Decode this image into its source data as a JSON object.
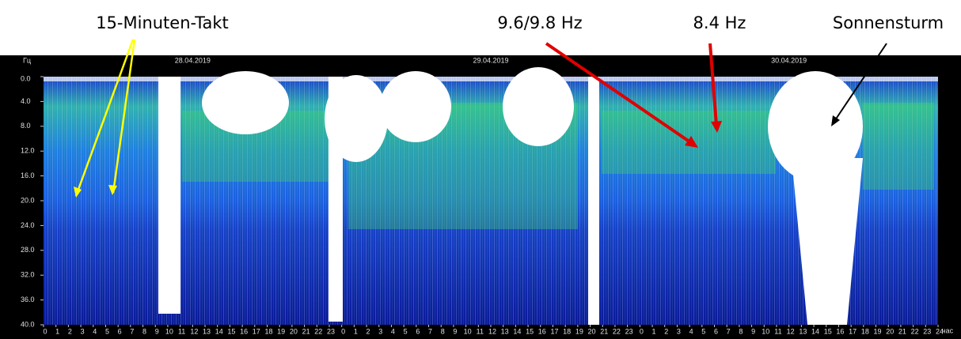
{
  "chart_data": {
    "type": "spectrogram",
    "y_label": "Гц",
    "x_label": "час",
    "y_inverted": true,
    "dates": [
      "28.04.2019",
      "29.04.2019",
      "30.04.2019"
    ],
    "annotations": [
      "15-Minuten-Takt",
      "9.6/9.8 Hz",
      "8.4 Hz",
      "Sonnensturm"
    ],
    "ylim": [
      0,
      40
    ],
    "yticks": [
      {
        "value": 0,
        "label": "0.0"
      },
      {
        "value": 4,
        "label": "4.0"
      },
      {
        "value": 8,
        "label": "8.0"
      },
      {
        "value": 12,
        "label": "12.0"
      },
      {
        "value": 16,
        "label": "16.0"
      },
      {
        "value": 20,
        "label": "20.0"
      },
      {
        "value": 24,
        "label": "24.0"
      },
      {
        "value": 28,
        "label": "28.0"
      },
      {
        "value": 32,
        "label": "32.0"
      },
      {
        "value": 36,
        "label": "36.0"
      },
      {
        "value": 40,
        "label": "40.0"
      }
    ],
    "xlim": [
      0,
      72
    ],
    "xticks": [
      0,
      1,
      2,
      3,
      4,
      5,
      6,
      7,
      8,
      9,
      10,
      11,
      12,
      13,
      14,
      15,
      16,
      17,
      18,
      19,
      20,
      21,
      22,
      23,
      {
        "value": 24,
        "label": "0"
      },
      {
        "value": 25,
        "label": "1"
      },
      {
        "value": 26,
        "label": "2"
      },
      {
        "value": 27,
        "label": "3"
      },
      {
        "value": 28,
        "label": "4"
      },
      {
        "value": 29,
        "label": "5"
      },
      {
        "value": 30,
        "label": "6"
      },
      {
        "value": 31,
        "label": "7"
      },
      {
        "value": 32,
        "label": "8"
      },
      {
        "value": 33,
        "label": "9"
      },
      {
        "value": 34,
        "label": "10"
      },
      {
        "value": 35,
        "label": "11"
      },
      {
        "value": 36,
        "label": "12"
      },
      {
        "value": 37,
        "label": "13"
      },
      {
        "value": 38,
        "label": "14"
      },
      {
        "value": 39,
        "label": "15"
      },
      {
        "value": 40,
        "label": "16"
      },
      {
        "value": 41,
        "label": "17"
      },
      {
        "value": 42,
        "label": "18"
      },
      {
        "value": 43,
        "label": "19"
      },
      {
        "value": 44,
        "label": "20"
      },
      {
        "value": 45,
        "label": "21"
      },
      {
        "value": 46,
        "label": "22"
      },
      {
        "value": 47,
        "label": "23"
      },
      {
        "value": 48,
        "label": "0"
      },
      {
        "value": 49,
        "label": "1"
      },
      {
        "value": 50,
        "label": "2"
      },
      {
        "value": 51,
        "label": "3"
      },
      {
        "value": 52,
        "label": "4"
      },
      {
        "value": 53,
        "label": "5"
      },
      {
        "value": 54,
        "label": "6"
      },
      {
        "value": 55,
        "label": "7"
      },
      {
        "value": 56,
        "label": "8"
      },
      {
        "value": 57,
        "label": "9"
      },
      {
        "value": 58,
        "label": "10"
      },
      {
        "value": 59,
        "label": "11"
      },
      {
        "value": 60,
        "label": "12"
      },
      {
        "value": 61,
        "label": "13"
      },
      {
        "value": 62,
        "label": "14"
      },
      {
        "value": 63,
        "label": "15"
      },
      {
        "value": 64,
        "label": "16"
      },
      {
        "value": 65,
        "label": "17"
      },
      {
        "value": 66,
        "label": "18"
      },
      {
        "value": 67,
        "label": "19"
      },
      {
        "value": 68,
        "label": "20"
      },
      {
        "value": 69,
        "label": "21"
      },
      {
        "value": 70,
        "label": "22"
      },
      {
        "value": 71,
        "label": "23"
      },
      {
        "value": 72,
        "label": "24"
      }
    ]
  }
}
